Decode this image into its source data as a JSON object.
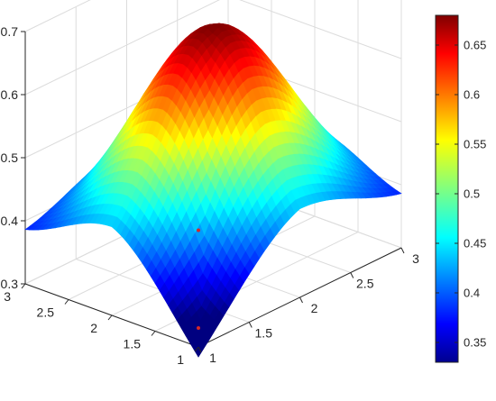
{
  "chart_data": {
    "type": "surface",
    "title": "",
    "xlabel": "",
    "ylabel": "",
    "zlabel": "",
    "xlim": [
      1,
      3
    ],
    "ylim": [
      1,
      3
    ],
    "zlim": [
      0.3,
      0.7
    ],
    "x_ticks": [
      1,
      1.5,
      2,
      2.5,
      3
    ],
    "x_tick_labels": [
      "1",
      "1.5",
      "2",
      "2.5",
      "3"
    ],
    "y_ticks": [
      1,
      1.5,
      2,
      2.5,
      3
    ],
    "y_tick_labels": [
      "1",
      "1.5",
      "2",
      "2.5",
      "3"
    ],
    "z_ticks": [
      0.3,
      0.4,
      0.5,
      0.6,
      0.7
    ],
    "z_tick_labels": [
      "0.3",
      "0.4",
      "0.5",
      "0.6",
      "0.7"
    ],
    "surface_summary": {
      "peak": {
        "x": 2,
        "y": 2,
        "z": 0.68
      },
      "corner_min": {
        "x": 1,
        "y": 1,
        "z": 0.33
      },
      "corner_values": {
        "x3_y1": 0.37,
        "x1_y3": 0.37,
        "x3_y3": 0.33
      }
    },
    "markers": [
      {
        "x": 1,
        "y": 1,
        "z": 0.33,
        "color": "#d62728"
      },
      {
        "x": 1.0,
        "y": 1.0,
        "z": 0.485,
        "color": "#d62728"
      }
    ],
    "grid": true,
    "colormap": "jet",
    "colorbar": {
      "limits": [
        0.33,
        0.68
      ],
      "ticks": [
        0.35,
        0.4,
        0.45,
        0.5,
        0.55,
        0.6,
        0.65
      ],
      "tick_labels": [
        "0.35",
        "0.4",
        "0.45",
        "0.5",
        "0.55",
        "0.6",
        "0.65"
      ]
    }
  }
}
